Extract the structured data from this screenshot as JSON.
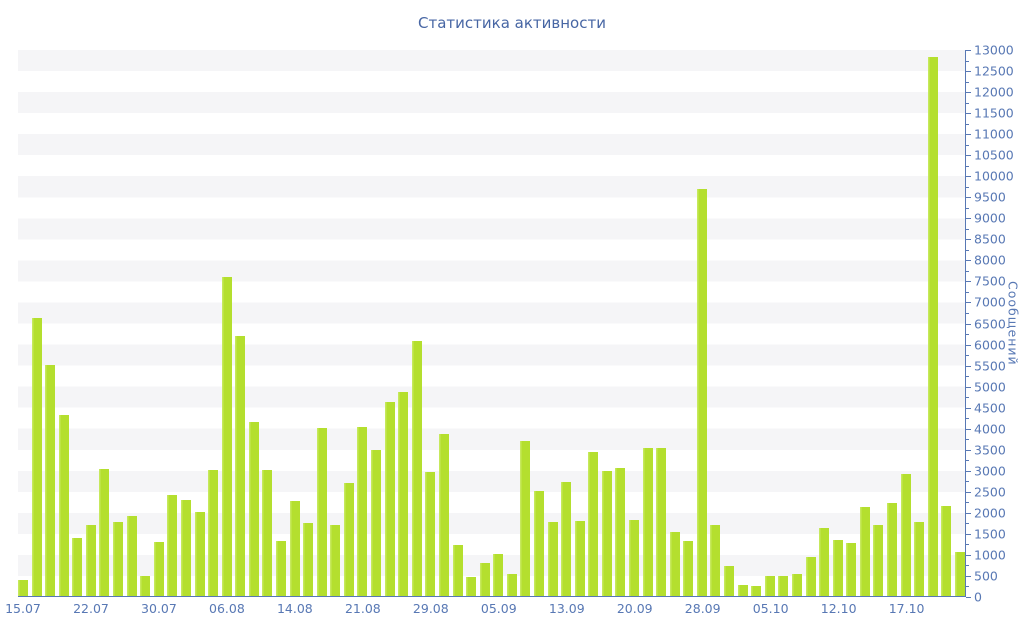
{
  "title": "Статистика активности",
  "colors": {
    "bar": "#b4df2e",
    "bar_edge": "#c6e95c",
    "axis": "#5878b4",
    "text": "#5878b4",
    "title": "#4766a4",
    "stripe": "#f5f5f7"
  },
  "chart_data": {
    "type": "bar",
    "title": "Статистика активности",
    "xlabel": "",
    "ylabel": "Сообщений",
    "ylim": [
      0,
      13000
    ],
    "y_tick_step": 500,
    "y_minor_tick_step": 250,
    "legend": "none",
    "grid": "alternating horizontal bands every 500",
    "bar_color": "#b4df2e",
    "x_tick_labels": [
      {
        "index": 0,
        "label": "15.07"
      },
      {
        "index": 5,
        "label": "22.07"
      },
      {
        "index": 10,
        "label": "30.07"
      },
      {
        "index": 15,
        "label": "06.08"
      },
      {
        "index": 20,
        "label": "14.08"
      },
      {
        "index": 25,
        "label": "21.08"
      },
      {
        "index": 30,
        "label": "29.08"
      },
      {
        "index": 35,
        "label": "05.09"
      },
      {
        "index": 40,
        "label": "13.09"
      },
      {
        "index": 45,
        "label": "20.09"
      },
      {
        "index": 50,
        "label": "28.09"
      },
      {
        "index": 55,
        "label": "05.10"
      },
      {
        "index": 60,
        "label": "12.10"
      },
      {
        "index": 65,
        "label": "17.10"
      }
    ],
    "values": [
      370,
      6610,
      5500,
      4310,
      1370,
      1690,
      3020,
      1760,
      1910,
      480,
      1280,
      2400,
      2280,
      2000,
      3000,
      7590,
      6180,
      4140,
      3000,
      1300,
      2270,
      1730,
      4000,
      1680,
      2680,
      4020,
      3480,
      4610,
      4850,
      6060,
      2960,
      3860,
      1220,
      460,
      790,
      1000,
      520,
      3680,
      2500,
      1770,
      2720,
      1790,
      3440,
      2980,
      3050,
      1810,
      3520,
      3520,
      1530,
      1300,
      9700,
      1690,
      720,
      270,
      230,
      480,
      480,
      520,
      940,
      1610,
      1330,
      1260,
      2120,
      1680,
      2210,
      2910,
      1770,
      12830,
      2140,
      1040
    ]
  }
}
